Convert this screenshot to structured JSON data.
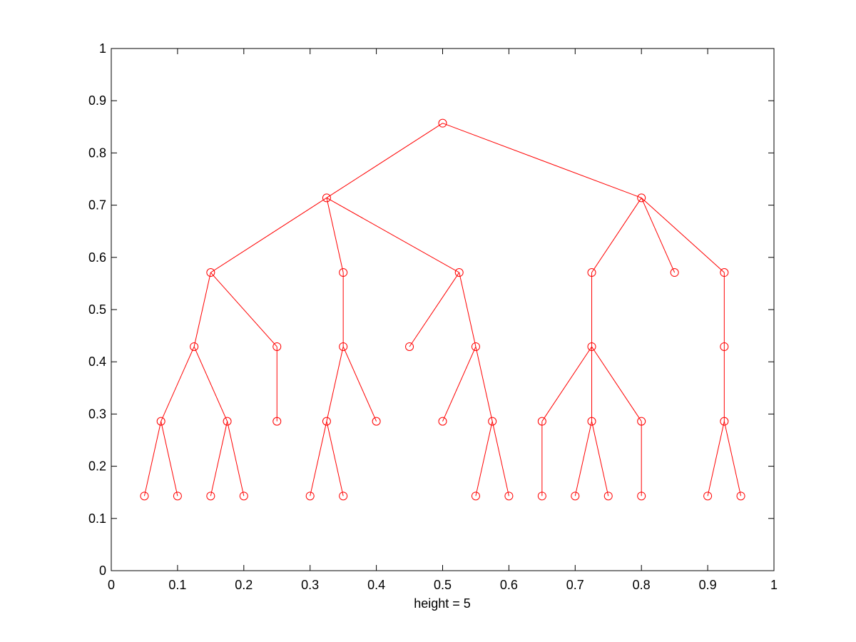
{
  "chart_data": {
    "type": "scatter",
    "title": "",
    "xlabel": "height = 5",
    "ylabel": "",
    "xlim": [
      0,
      1
    ],
    "ylim": [
      0,
      1
    ],
    "xticks": [
      "0",
      "0.1",
      "0.2",
      "0.3",
      "0.4",
      "0.5",
      "0.6",
      "0.7",
      "0.8",
      "0.9",
      "1"
    ],
    "yticks": [
      "0",
      "0.1",
      "0.2",
      "0.3",
      "0.4",
      "0.5",
      "0.6",
      "0.7",
      "0.8",
      "0.9",
      "1"
    ],
    "grid": false,
    "color": "#ff0000",
    "marker": "circle",
    "nodes": [
      {
        "id": 0,
        "x": 0.5,
        "y": 0.857
      },
      {
        "id": 1,
        "x": 0.325,
        "y": 0.714
      },
      {
        "id": 2,
        "x": 0.8,
        "y": 0.714
      },
      {
        "id": 3,
        "x": 0.15,
        "y": 0.571
      },
      {
        "id": 4,
        "x": 0.35,
        "y": 0.571
      },
      {
        "id": 5,
        "x": 0.525,
        "y": 0.571
      },
      {
        "id": 6,
        "x": 0.725,
        "y": 0.571
      },
      {
        "id": 7,
        "x": 0.85,
        "y": 0.571
      },
      {
        "id": 8,
        "x": 0.925,
        "y": 0.571
      },
      {
        "id": 9,
        "x": 0.125,
        "y": 0.429
      },
      {
        "id": 10,
        "x": 0.25,
        "y": 0.429
      },
      {
        "id": 11,
        "x": 0.35,
        "y": 0.429
      },
      {
        "id": 12,
        "x": 0.45,
        "y": 0.429
      },
      {
        "id": 13,
        "x": 0.55,
        "y": 0.429
      },
      {
        "id": 14,
        "x": 0.725,
        "y": 0.429
      },
      {
        "id": 15,
        "x": 0.925,
        "y": 0.429
      },
      {
        "id": 16,
        "x": 0.075,
        "y": 0.286
      },
      {
        "id": 17,
        "x": 0.175,
        "y": 0.286
      },
      {
        "id": 18,
        "x": 0.25,
        "y": 0.286
      },
      {
        "id": 19,
        "x": 0.325,
        "y": 0.286
      },
      {
        "id": 20,
        "x": 0.4,
        "y": 0.286
      },
      {
        "id": 21,
        "x": 0.5,
        "y": 0.286
      },
      {
        "id": 22,
        "x": 0.575,
        "y": 0.286
      },
      {
        "id": 23,
        "x": 0.65,
        "y": 0.286
      },
      {
        "id": 24,
        "x": 0.725,
        "y": 0.286
      },
      {
        "id": 25,
        "x": 0.8,
        "y": 0.286
      },
      {
        "id": 26,
        "x": 0.925,
        "y": 0.286
      },
      {
        "id": 27,
        "x": 0.05,
        "y": 0.143
      },
      {
        "id": 28,
        "x": 0.1,
        "y": 0.143
      },
      {
        "id": 29,
        "x": 0.15,
        "y": 0.143
      },
      {
        "id": 30,
        "x": 0.2,
        "y": 0.143
      },
      {
        "id": 31,
        "x": 0.3,
        "y": 0.143
      },
      {
        "id": 32,
        "x": 0.35,
        "y": 0.143
      },
      {
        "id": 33,
        "x": 0.55,
        "y": 0.143
      },
      {
        "id": 34,
        "x": 0.6,
        "y": 0.143
      },
      {
        "id": 35,
        "x": 0.65,
        "y": 0.143
      },
      {
        "id": 36,
        "x": 0.7,
        "y": 0.143
      },
      {
        "id": 37,
        "x": 0.75,
        "y": 0.143
      },
      {
        "id": 38,
        "x": 0.8,
        "y": 0.143
      },
      {
        "id": 39,
        "x": 0.9,
        "y": 0.143
      },
      {
        "id": 40,
        "x": 0.95,
        "y": 0.143
      }
    ],
    "edges": [
      [
        0,
        1
      ],
      [
        0,
        2
      ],
      [
        1,
        3
      ],
      [
        1,
        4
      ],
      [
        1,
        5
      ],
      [
        2,
        6
      ],
      [
        2,
        7
      ],
      [
        2,
        8
      ],
      [
        3,
        9
      ],
      [
        3,
        10
      ],
      [
        4,
        11
      ],
      [
        5,
        12
      ],
      [
        5,
        13
      ],
      [
        6,
        14
      ],
      [
        8,
        15
      ],
      [
        9,
        16
      ],
      [
        9,
        17
      ],
      [
        10,
        18
      ],
      [
        11,
        19
      ],
      [
        11,
        20
      ],
      [
        13,
        21
      ],
      [
        13,
        22
      ],
      [
        14,
        23
      ],
      [
        14,
        24
      ],
      [
        14,
        25
      ],
      [
        15,
        26
      ],
      [
        16,
        27
      ],
      [
        16,
        28
      ],
      [
        17,
        29
      ],
      [
        17,
        30
      ],
      [
        19,
        31
      ],
      [
        19,
        32
      ],
      [
        22,
        33
      ],
      [
        22,
        34
      ],
      [
        23,
        35
      ],
      [
        24,
        36
      ],
      [
        24,
        37
      ],
      [
        25,
        38
      ],
      [
        26,
        39
      ],
      [
        26,
        40
      ]
    ]
  }
}
